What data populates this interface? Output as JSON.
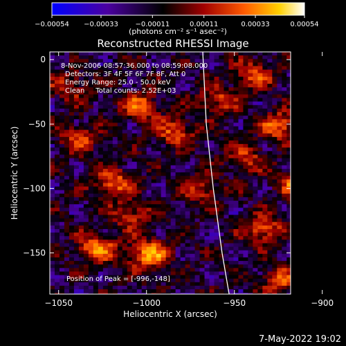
{
  "chart_data": {
    "type": "heatmap",
    "title": "Reconstructed RHESSI Image",
    "xlabel": "Heliocentric X (arcsec)",
    "ylabel": "Heliocentric Y (arcsec)",
    "xlim": [
      -1055,
      -918
    ],
    "ylim": [
      -182,
      6
    ],
    "x_ticks": [
      -1050,
      -1000,
      -950,
      -900
    ],
    "x_tick_labels": [
      "−1050",
      "−1000",
      "−950",
      "−900"
    ],
    "y_ticks": [
      0,
      -50,
      -100,
      -150
    ],
    "y_tick_labels": [
      "0",
      "−50",
      "−100",
      "−150"
    ],
    "colorbar": {
      "min": -0.00054,
      "max": 0.00054,
      "ticks": [
        -0.00054,
        -0.00033,
        -0.00011,
        0.00011,
        0.00033,
        0.00054
      ],
      "tick_labels": [
        "−0.00054",
        "−0.00033",
        "−0.00011",
        "0.00011",
        "0.00033",
        "0.00054"
      ],
      "units": "(photons cm⁻² s⁻¹ asec⁻²)",
      "colormap": [
        "#0000ff",
        "#4b00a0",
        "#000000",
        "#a00000",
        "#ff5a00",
        "#ffd000",
        "#ffffff"
      ]
    },
    "info_lines": [
      "8-Nov-2006 08:57:36.000 to 08:59:08.000",
      "Detectors: 3F 4F 5F 6F 7F 8F, Att 0",
      "Energy Range: 25.0 - 50.0 keV",
      "Clean     Total counts: 2.52E+03"
    ],
    "peak": {
      "x": -996,
      "y": -148,
      "label": "Position of Peak = [-996,-148]"
    },
    "limb_curve": [
      [
        -968,
        6
      ],
      [
        -966,
        -50
      ],
      [
        -962,
        -100
      ],
      [
        -957,
        -150
      ],
      [
        -953,
        -182
      ]
    ],
    "image_bright_regions": [
      {
        "x": -1000,
        "y": -150,
        "value": 0.00052
      },
      {
        "x": -1030,
        "y": -145,
        "value": 0.00045
      },
      {
        "x": -1020,
        "y": -95,
        "value": 0.0004
      },
      {
        "x": -1005,
        "y": -35,
        "value": 0.00038
      },
      {
        "x": -985,
        "y": -55,
        "value": 0.00035
      },
      {
        "x": -925,
        "y": -50,
        "value": 0.0004
      },
      {
        "x": -915,
        "y": -95,
        "value": 0.00042
      },
      {
        "x": -935,
        "y": -130,
        "value": 0.00038
      },
      {
        "x": -960,
        "y": -30,
        "value": 0.0003
      },
      {
        "x": -940,
        "y": -10,
        "value": 0.00032
      },
      {
        "x": -1045,
        "y": -20,
        "value": 0.00025
      },
      {
        "x": -1040,
        "y": -60,
        "value": 0.0003
      },
      {
        "x": -970,
        "y": -100,
        "value": 0.00028
      },
      {
        "x": -925,
        "y": -170,
        "value": 0.00033
      },
      {
        "x": -1010,
        "y": -120,
        "value": 0.0003
      },
      {
        "x": -945,
        "y": -75,
        "value": 0.00028
      }
    ],
    "grid": false
  },
  "timestamp": "7-May-2022 19:02"
}
